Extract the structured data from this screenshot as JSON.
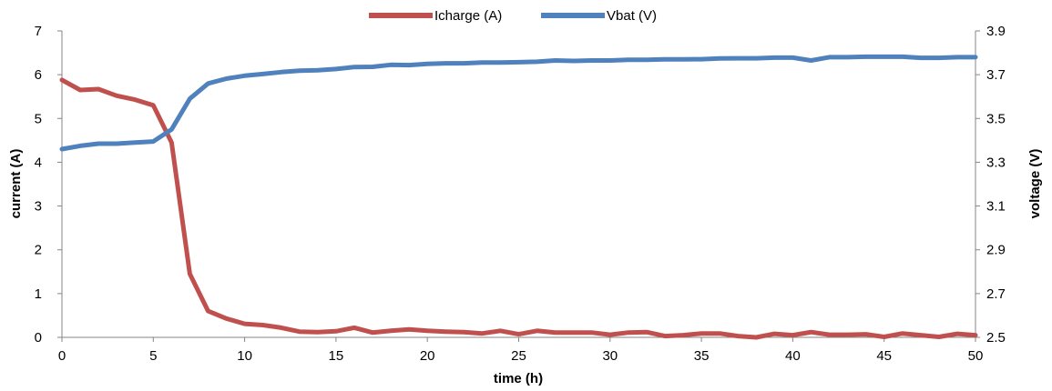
{
  "chart_data": {
    "type": "line",
    "xlabel": "time (h)",
    "ylabel_left": "current (A)",
    "ylabel_right": "voltage (V)",
    "xlim": [
      0,
      50
    ],
    "ylim_left": [
      0,
      7
    ],
    "ylim_right": [
      2.5,
      3.9
    ],
    "xticks": [
      0,
      5,
      10,
      15,
      20,
      25,
      30,
      35,
      40,
      45,
      50
    ],
    "yticks_left": [
      0,
      1,
      2,
      3,
      4,
      5,
      6,
      7
    ],
    "yticks_right": [
      "2.5",
      "2.7",
      "2.9",
      "3.1",
      "3.3",
      "3.5",
      "3.7",
      "3.9"
    ],
    "grid": false,
    "legend_position": "top-center",
    "x": [
      0,
      1,
      2,
      3,
      4,
      5,
      6,
      7,
      8,
      9,
      10,
      11,
      12,
      13,
      14,
      15,
      16,
      17,
      18,
      19,
      20,
      21,
      22,
      23,
      24,
      25,
      26,
      27,
      28,
      29,
      30,
      31,
      32,
      33,
      34,
      35,
      36,
      37,
      38,
      39,
      40,
      41,
      42,
      43,
      44,
      45,
      46,
      47,
      48,
      49,
      50
    ],
    "series": [
      {
        "name": "Icharge (A)",
        "axis": "left",
        "color": "#C0504D",
        "values": [
          5.88,
          5.65,
          5.67,
          5.52,
          5.43,
          5.3,
          4.45,
          1.45,
          0.6,
          0.43,
          0.31,
          0.28,
          0.22,
          0.13,
          0.12,
          0.14,
          0.22,
          0.11,
          0.15,
          0.18,
          0.15,
          0.13,
          0.12,
          0.09,
          0.15,
          0.07,
          0.15,
          0.11,
          0.11,
          0.11,
          0.06,
          0.11,
          0.12,
          0.03,
          0.05,
          0.09,
          0.09,
          0.03,
          0.0,
          0.08,
          0.05,
          0.12,
          0.06,
          0.06,
          0.07,
          0.01,
          0.09,
          0.05,
          0.01,
          0.08,
          0.05
        ]
      },
      {
        "name": "Vbat (V)",
        "axis": "right",
        "color": "#4F81BD",
        "values": [
          3.36,
          3.375,
          3.385,
          3.385,
          3.39,
          3.395,
          3.45,
          3.59,
          3.66,
          3.682,
          3.695,
          3.703,
          3.712,
          3.718,
          3.72,
          3.726,
          3.735,
          3.736,
          3.745,
          3.744,
          3.749,
          3.752,
          3.752,
          3.756,
          3.756,
          3.757,
          3.759,
          3.765,
          3.763,
          3.765,
          3.765,
          3.768,
          3.768,
          3.77,
          3.77,
          3.771,
          3.774,
          3.775,
          3.775,
          3.778,
          3.778,
          3.765,
          3.78,
          3.78,
          3.782,
          3.782,
          3.782,
          3.777,
          3.777,
          3.78,
          3.78
        ]
      }
    ]
  }
}
